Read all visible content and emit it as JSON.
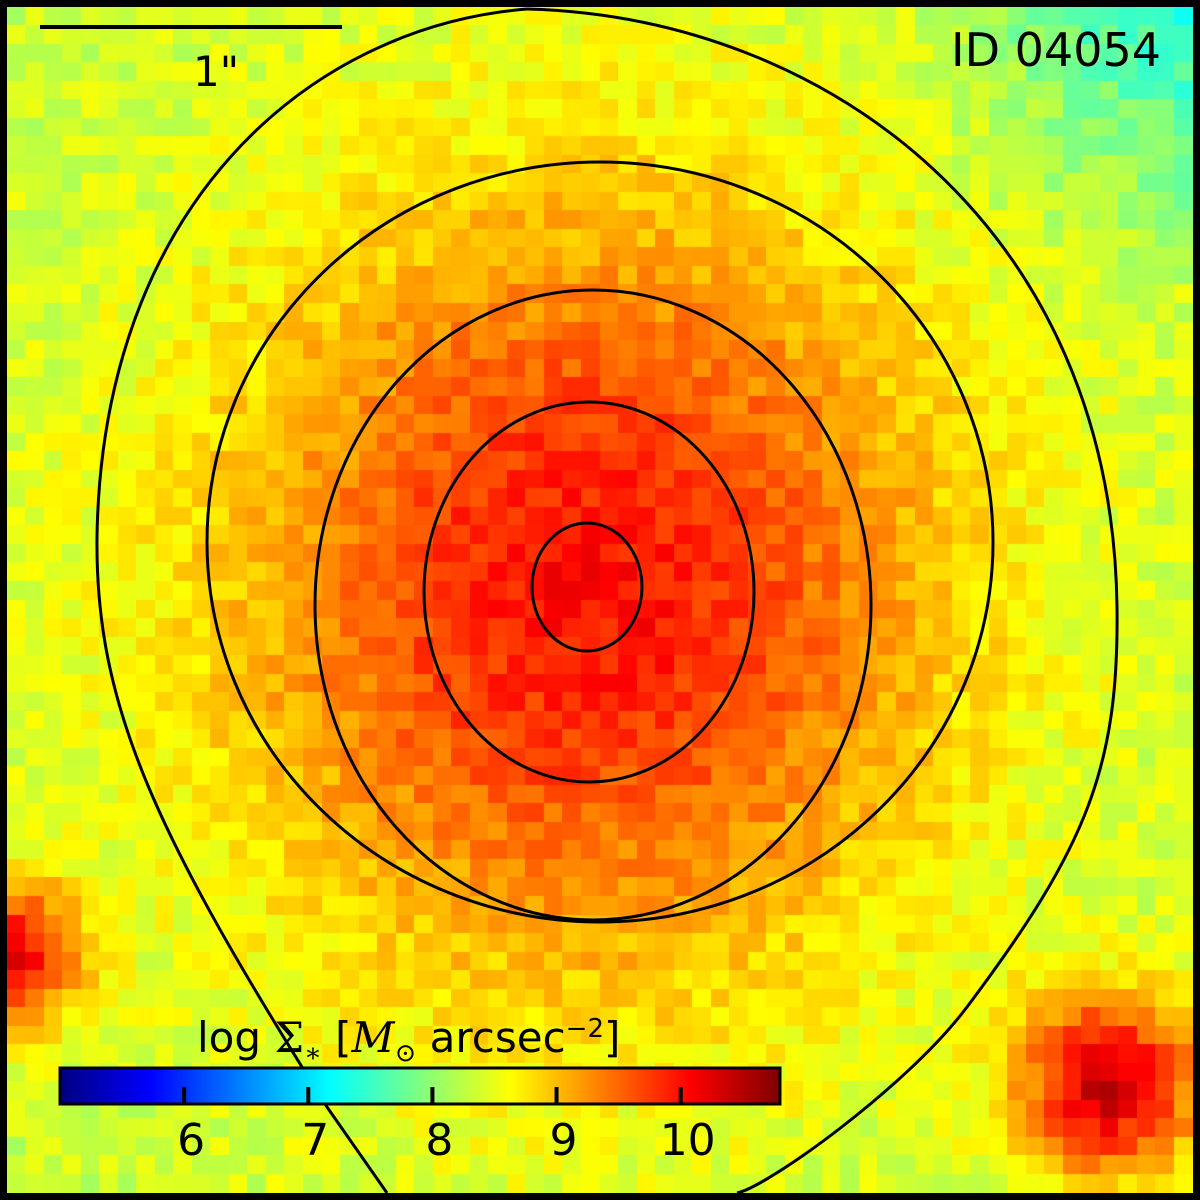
{
  "scale_bar": {
    "label": "1\""
  },
  "object_id": "ID 04054",
  "colorbar": {
    "title_prefix": "log ",
    "title_symbol": "Σ",
    "title_sub": "∗",
    "title_bracket_open": " [",
    "title_unit_M": "M",
    "title_unit_sun": "⊙",
    "title_unit_rest": " arcsec",
    "title_exp": "−2",
    "title_bracket_close": "]",
    "range": [
      5.0,
      10.8
    ],
    "ticks": [
      "6",
      "7",
      "8",
      "9",
      "10"
    ],
    "colormap": "jet"
  },
  "colors": {
    "background_low": "#2ee3ff",
    "mid": "#e8f510",
    "high": "#ff2a00",
    "contour": "#000000"
  }
}
